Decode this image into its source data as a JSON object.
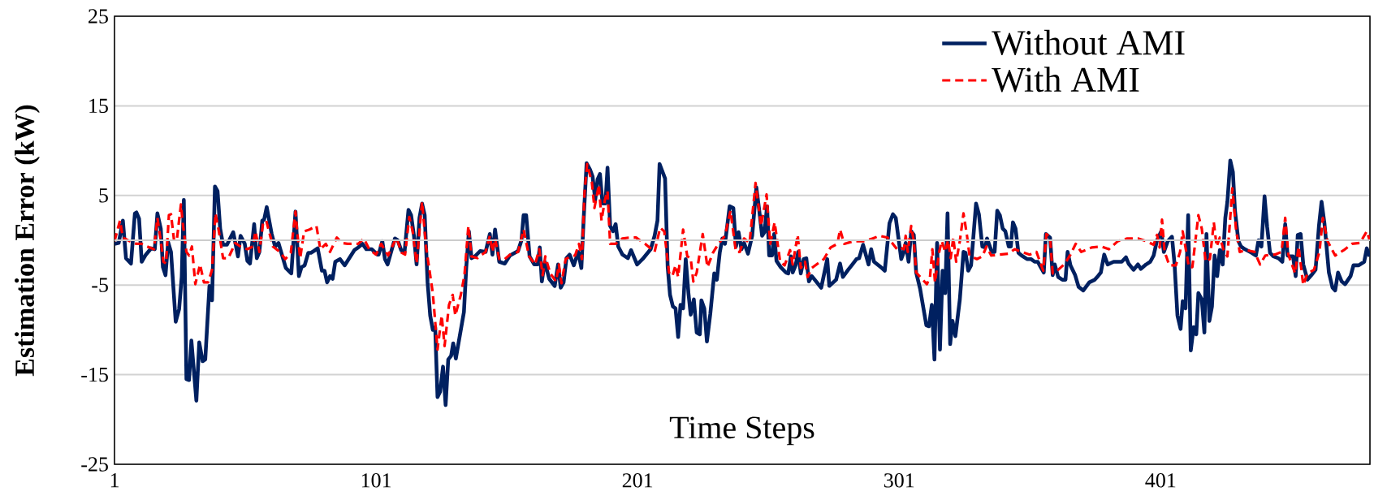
{
  "chart_data": {
    "type": "line",
    "xlabel": "Time Steps",
    "ylabel": "Estimation Error (kW)",
    "xlim": [
      1,
      481
    ],
    "xticks": [
      1,
      101,
      201,
      301,
      401
    ],
    "ylim": [
      -25,
      25
    ],
    "yticks": [
      25,
      15,
      5,
      -5,
      -15,
      -25
    ],
    "grid": "y",
    "legend": "top right",
    "marker": "none",
    "series": [
      {
        "name": "Without AMI",
        "color": "#002060",
        "line_style": "solid",
        "x": [
          1,
          2.6,
          4.2,
          5.4,
          7.3,
          8.8,
          9.4,
          10.4,
          11.4,
          13,
          15,
          16.4,
          17.4,
          18.7,
          19.5,
          20.5,
          21.5,
          22.6,
          24.4,
          25.7,
          26.7,
          27.5,
          28.5,
          29.5,
          30.4,
          32.3,
          33.4,
          34.7,
          35.7,
          37.3,
          38.3,
          39.4,
          40.4,
          41.4,
          42.5,
          44,
          46.4,
          48.2,
          49.2,
          50.8,
          51.8,
          52.8,
          54.4,
          55.4,
          56.4,
          57.5,
          58.2,
          59.2,
          61.1,
          62.4,
          63.7,
          66.5,
          68.6,
          70.2,
          71.5,
          72.5,
          73.7,
          75.1,
          76.1,
          77.2,
          78.7,
          80.3,
          81.3,
          82.3,
          83.4,
          84.4,
          85.4,
          87.2,
          89,
          92.7,
          94.2,
          95.8,
          97.3,
          99.4,
          101.5,
          102,
          103.4,
          104.4,
          105.4,
          108.2,
          109.3,
          110.6,
          111.9,
          113.4,
          114.4,
          115.5,
          116.5,
          117.6,
          118.6,
          119.6,
          120.7,
          121.7,
          122.7,
          123.6,
          124.5,
          125.5,
          126.6,
          127.6,
          128.6,
          129.7,
          130.5,
          131.5,
          134.6,
          135.5,
          136.5,
          137.5,
          138.8,
          140.8,
          142.9,
          144.5,
          145.5,
          146.5,
          148.1,
          150.2,
          152.2,
          155.3,
          156.6,
          157.4,
          158.4,
          159.7,
          161.5,
          162.8,
          163.6,
          164.4,
          165.5,
          167.2,
          169.3,
          170.6,
          171.6,
          172.7,
          173.8,
          175,
          176.6,
          178.3,
          179.5,
          180.4,
          181.5,
          182.8,
          183.8,
          184.8,
          185.7,
          186.6,
          187.6,
          188.7,
          189.5,
          190.5,
          191.6,
          192.6,
          193.6,
          195.2,
          197.3,
          198.5,
          199.8,
          200.8,
          202.9,
          206,
          207.5,
          208.6,
          209.4,
          211.5,
          212.5,
          213.4,
          214.5,
          215.5,
          216.5,
          217.4,
          218.4,
          219.4,
          220.5,
          221.3,
          222.5,
          223.6,
          224.8,
          225.4,
          226.5,
          227.5,
          228.8,
          230.3,
          231.3,
          232.4,
          233.4,
          234.4,
          236.2,
          237.6,
          238.6,
          239.6,
          240.7,
          241.7,
          243.2,
          244.8,
          246.4,
          247.4,
          248.6,
          249.5,
          250.5,
          251.3,
          252.4,
          253.2,
          254.1,
          255.7,
          257.7,
          258.6,
          259.6,
          260.3,
          261.4,
          262.4,
          263.4,
          264.5,
          265.5,
          266.5,
          267.6,
          271.2,
          273.5,
          274.3,
          276.9,
          278.4,
          279.5,
          281.5,
          283.1,
          284.7,
          285.7,
          287.2,
          289.3,
          290.3,
          291.4,
          294,
          295.5,
          297.3,
          298.6,
          299.7,
          301.8,
          302.8,
          303.5,
          304.6,
          305.6,
          306.6,
          307.5,
          309,
          311.4,
          312.4,
          313.5,
          314.5,
          315.5,
          316.6,
          317.6,
          318.6,
          319.5,
          320.5,
          321.4,
          322.5,
          324.2,
          325.6,
          326.4,
          327.4,
          328.5,
          330.4,
          331.5,
          332.8,
          333.9,
          334.6,
          336.4,
          337.5,
          338.5,
          339.5,
          340.6,
          341.6,
          342.9,
          343.7,
          344.5,
          345.5,
          346.6,
          347.8,
          349.9,
          351.4,
          352.8,
          354,
          355.1,
          356.3,
          357.1,
          358.7,
          359.7,
          360.5,
          361.8,
          363.4,
          364.6,
          365.4,
          366.5,
          368.3,
          369.6,
          371.4,
          373.7,
          375.8,
          377,
          378.1,
          379.4,
          380.7,
          383,
          386.1,
          387.7,
          388.7,
          390.6,
          392.3,
          393.4,
          395.4,
          397,
          398.3,
          399.6,
          401.2,
          402.2,
          403.7,
          405.3,
          406.3,
          407.4,
          408.6,
          409.4,
          410.5,
          411.5,
          412.5,
          413.6,
          414.6,
          415.4,
          416.7,
          417.7,
          418.5,
          419.6,
          420.6,
          421.6,
          422.6,
          423.6,
          424.7,
          425.7,
          426.5,
          427.6,
          428.6,
          429.4,
          430.7,
          431.7,
          433.2,
          435.8,
          437.4,
          438.4,
          439.5,
          440.7,
          441.7,
          442.8,
          444.1,
          446,
          447.5,
          448.6,
          449.5,
          450.5,
          451.6,
          452.6,
          453.4,
          454.5,
          455.5,
          457.1,
          458.6,
          460.2,
          461.5,
          462.5,
          463.6,
          465.3,
          466.7,
          467.7,
          468.8,
          470.2,
          471.5,
          473.6,
          474.7,
          476.7,
          478.8,
          479.8,
          480.9
        ],
        "values": [
          -0.4,
          -0.3,
          2.2,
          -2,
          -2.6,
          3,
          3.1,
          2.4,
          -2.4,
          -1.6,
          -0.9,
          -1,
          3,
          1.3,
          -3,
          -3.9,
          -0.2,
          -1.3,
          -9.1,
          -7.7,
          -4.1,
          4.5,
          -15.5,
          -15.6,
          -11.2,
          -17.9,
          -11.4,
          -13.5,
          -13.3,
          -5.1,
          -6.7,
          6,
          5.5,
          1.3,
          -0.5,
          -0.5,
          0.9,
          -1.8,
          0.5,
          -0.4,
          -2.3,
          -2.6,
          1.8,
          -2,
          -1.3,
          2.2,
          2.3,
          3.7,
          0.7,
          -0.7,
          -0.3,
          -3.1,
          -3.7,
          3.2,
          -4,
          -3,
          -2.8,
          -1.4,
          -1.4,
          -1.2,
          -0.9,
          -3.4,
          -3.4,
          -4.7,
          -4,
          -4.3,
          -2.4,
          -2.1,
          -2.8,
          -1.1,
          -0.8,
          -0.4,
          -1,
          -1,
          -1.6,
          -1.6,
          -0.1,
          -2.1,
          -2.7,
          0.2,
          0,
          -1.1,
          -1.3,
          3.4,
          2.8,
          0.5,
          -2.7,
          2.5,
          4.1,
          2.8,
          -4.7,
          -8.4,
          -10,
          -9.7,
          -17.5,
          -16.9,
          -14.1,
          -18.4,
          -13.3,
          -12.9,
          -11.5,
          -13.2,
          -8,
          -3,
          1,
          -2,
          -1.8,
          -1.2,
          -1.3,
          0.7,
          -1.6,
          1.2,
          -2.4,
          -2.6,
          -1.7,
          -1.2,
          0,
          2.8,
          2.8,
          -1.8,
          -2.7,
          -2.7,
          -0.8,
          -4.6,
          -2.4,
          -4.3,
          -5.1,
          -2.7,
          -5.3,
          -4.7,
          -2,
          -1.6,
          -2.8,
          -1.3,
          -3.1,
          2.5,
          8.6,
          7.9,
          7.1,
          4.5,
          6.8,
          7.4,
          4.1,
          4.1,
          8.1,
          1.6,
          1,
          1.8,
          -0.7,
          -1.6,
          -2,
          -1.1,
          -2,
          -2.7,
          -2.1,
          -1,
          0.5,
          2.2,
          8.5,
          6.9,
          -3,
          -6.1,
          -7.4,
          -7.6,
          -10.8,
          -7.2,
          -7.6,
          -2.1,
          -6.1,
          -8.3,
          -6.6,
          -10.3,
          -10.5,
          -6.7,
          -7.6,
          -11.3,
          -8.2,
          -3.7,
          -4.4,
          -1.4,
          0.2,
          -0.4,
          3.8,
          3.6,
          -0.7,
          0.9,
          -1,
          -0.3,
          -1.5,
          0.5,
          5.9,
          3.6,
          0.5,
          0.9,
          3.8,
          -1.7,
          -1.7,
          0.7,
          -2.3,
          -3,
          -3.6,
          -3.7,
          -1.8,
          -3.6,
          -2.8,
          -1.3,
          -3.7,
          -2.1,
          -2,
          -4.6,
          -4,
          -5.3,
          -2.1,
          -5.1,
          -4.4,
          -2.6,
          -4.1,
          -3.3,
          -2.7,
          -2.1,
          -2,
          -0.5,
          -2.7,
          -1,
          -2.4,
          -3,
          -3.4,
          1.9,
          2.9,
          2.5,
          -2.1,
          -1.3,
          -0.3,
          -2.4,
          1,
          0.6,
          -3.6,
          -5.4,
          -9.5,
          -9.6,
          -7.2,
          -13.3,
          -0.3,
          -12.2,
          -3.4,
          -5.9,
          3,
          -11.6,
          -9,
          -10.7,
          -6.6,
          -1.3,
          -1.4,
          -3.4,
          -2.8,
          4.1,
          2.9,
          -0.7,
          -0.8,
          0.2,
          -1.3,
          -1.3,
          3.3,
          2.8,
          1.3,
          1,
          -0.7,
          -0.7,
          2,
          1.3,
          -1.4,
          -1.7,
          -2.1,
          -2.1,
          -2.4,
          -2.4,
          -3,
          -3.6,
          0.7,
          0.3,
          -3.9,
          -2.7,
          -4.1,
          -4.4,
          -4.4,
          -1.3,
          -2.8,
          -3.9,
          -5.2,
          -5.6,
          -4.7,
          -4.4,
          -4,
          -3.6,
          -1.6,
          -2.7,
          -2.4,
          -2.4,
          -1.9,
          -2.6,
          -3.3,
          -2.7,
          -3.2,
          -2.7,
          -2.4,
          -1.7,
          0,
          1,
          -1.3,
          -0.1,
          0.4,
          -2.7,
          -8.4,
          -9.9,
          -6.8,
          -7.6,
          2.8,
          -12.3,
          -9.7,
          -10.5,
          -5.9,
          -6.6,
          -10.3,
          0.7,
          -9,
          -7.4,
          -1.7,
          -4,
          -1.1,
          -2.7,
          2.5,
          4.3,
          8.9,
          7.6,
          3.3,
          -0.1,
          -0.7,
          -1,
          -1.4,
          -1.7,
          0,
          -0.7,
          4.9,
          1.5,
          -1.4,
          -1.8,
          -2,
          -2.4,
          1.8,
          -1.7,
          -1.8,
          -1.8,
          -4,
          0.6,
          0.7,
          -2.7,
          -4.4,
          -3.9,
          -3.3,
          1.6,
          4.3,
          1.9,
          -3.6,
          -5.3,
          -5.6,
          -3.6,
          -4.6,
          -4.9,
          -4,
          -2.8,
          -2.8,
          -2.4,
          -0.9,
          -1.8
        ]
      },
      {
        "name": "With AMI",
        "color": "#ff0000",
        "line_style": "dashed",
        "x": [
          1,
          3.1,
          4.2,
          6.8,
          9.4,
          11.4,
          13.5,
          16.1,
          17.4,
          18.7,
          19.7,
          20.7,
          21.8,
          22.6,
          23.8,
          24.9,
          26.4,
          27.1,
          28.5,
          29.5,
          30.6,
          31.9,
          33.7,
          35.2,
          36.8,
          38.3,
          39.6,
          40.9,
          42.5,
          44.5,
          46.1,
          47.1,
          49.2,
          51.8,
          53.9,
          54.9,
          56.4,
          57.8,
          59,
          61.6,
          64.2,
          66.3,
          68.4,
          70.2,
          71,
          72,
          73.5,
          75.6,
          78.2,
          79.7,
          81.8,
          83.4,
          86,
          88,
          90.1,
          94.2,
          96.3,
          98.4,
          101,
          103,
          105.6,
          108.8,
          110.8,
          112.1,
          113.7,
          115,
          116.5,
          118.6,
          120.1,
          122.7,
          124.5,
          126.1,
          127.2,
          128.9,
          130.3,
          131.3,
          133.4,
          134.8,
          136.3,
          137.5,
          139.8,
          142.9,
          144.5,
          145.5,
          146.5,
          148.1,
          150.2,
          152.2,
          155.3,
          157.4,
          159.5,
          161.8,
          163.4,
          164.7,
          165.7,
          167.6,
          169.8,
          170.9,
          171.9,
          173.5,
          175.5,
          177.1,
          178.6,
          179.7,
          180.7,
          181.7,
          183.5,
          184.5,
          186.2,
          187.2,
          188.5,
          189.5,
          190.5,
          192.6,
          195.2,
          197.8,
          200.4,
          203.9,
          207.5,
          209.6,
          211.2,
          213,
          214.3,
          215.5,
          216.5,
          218.4,
          220,
          221.3,
          222.3,
          223.6,
          225.9,
          227.7,
          229.8,
          231.9,
          234.4,
          236.5,
          238.6,
          240.1,
          241.7,
          243.8,
          246.1,
          248.2,
          250.3,
          251.7,
          253.4,
          255.5,
          257.2,
          259.3,
          260.3,
          262.2,
          263.4,
          265,
          266,
          267.6,
          272.2,
          274.8,
          277.4,
          278.4,
          280,
          283.6,
          287.8,
          290.9,
          293.5,
          296.6,
          298.6,
          300.2,
          301.2,
          302.8,
          303.5,
          304.3,
          305.6,
          306.6,
          307.5,
          311.6,
          312.8,
          313.7,
          314.7,
          316.3,
          317.3,
          318.6,
          319.7,
          320.7,
          321.7,
          322.8,
          324.2,
          325.6,
          326.9,
          327.9,
          330.7,
          332.8,
          334.4,
          336.2,
          339.5,
          342.6,
          345.2,
          347.8,
          350.9,
          353.5,
          356.1,
          357.3,
          358.7,
          359.7,
          361.8,
          364.4,
          366.5,
          368.5,
          370.6,
          374.7,
          378.4,
          381.2,
          384.6,
          388.2,
          392.3,
          395.4,
          398.3,
          399.6,
          400.6,
          401.5,
          402.5,
          404.3,
          406.8,
          408.4,
          409.4,
          411.8,
          413.1,
          415.4,
          416.7,
          418.2,
          419.8,
          421.3,
          422.4,
          423.6,
          425,
          426.5,
          428.4,
          429.8,
          431.2,
          433.8,
          436.9,
          439,
          441,
          444.6,
          447.2,
          448.6,
          449.8,
          452.4,
          453.7,
          455.5,
          457.1,
          459.6,
          461.7,
          463,
          464.8,
          467.7,
          471,
          474.1,
          477.2,
          479.8,
          480.9
        ],
        "values": [
          -0.1,
          2.2,
          0.3,
          -0.1,
          -0.4,
          -0.4,
          -0.7,
          -1,
          2.5,
          -0.1,
          -2.4,
          -2.6,
          2.8,
          2.9,
          -0.1,
          0.2,
          4,
          1.9,
          -1.3,
          -1.7,
          -0.7,
          -4.9,
          -2.7,
          -4.7,
          -4.7,
          -3.3,
          3,
          1,
          -2,
          -2,
          -1,
          -0.3,
          -0.7,
          -1,
          -0.7,
          1,
          -1.3,
          1.9,
          2.2,
          -0.7,
          -1.3,
          -2.1,
          -1.4,
          3.2,
          0.5,
          -2,
          1,
          1.2,
          1.6,
          -1,
          -0.4,
          -1.3,
          0.3,
          -0.3,
          -0.4,
          -0.4,
          0.2,
          -1,
          -1.6,
          -0.4,
          -1.7,
          0.3,
          -1.4,
          -1.6,
          2.6,
          1,
          -2.6,
          4.3,
          -0.7,
          -5.9,
          -12.2,
          -8.4,
          -11.8,
          -7.2,
          -6.1,
          -8.4,
          -6.1,
          -3.9,
          1.6,
          -1.8,
          -2,
          -1.3,
          0.5,
          -1.3,
          0.2,
          -2.1,
          -2.1,
          -1.6,
          -1.3,
          1.2,
          -1.8,
          -2.7,
          -1,
          -3.9,
          -1.8,
          -3.7,
          -4.6,
          -2.7,
          -4.8,
          -2.1,
          -1.8,
          -1.7,
          -0.4,
          -2.1,
          5.3,
          8.5,
          6.5,
          3.6,
          6.2,
          2.2,
          4.5,
          5.5,
          -0.4,
          -0.4,
          0.2,
          0.3,
          0.3,
          -0.4,
          -1.3,
          1.4,
          1,
          -3.6,
          -4,
          -2.8,
          -4.1,
          1.2,
          -1.8,
          -2,
          -4.6,
          -3.6,
          0.7,
          -3,
          -1.4,
          -0.4,
          0.5,
          3.3,
          -1.3,
          -1.3,
          0.2,
          -0.3,
          6.4,
          1.6,
          5.1,
          -0.4,
          2,
          -2.4,
          -2.8,
          -1.1,
          -2.7,
          0.6,
          -3.1,
          -2.4,
          -4.1,
          -3.1,
          -2.1,
          -0.8,
          -0.4,
          1.2,
          -0.4,
          -0.1,
          -0.1,
          0.2,
          0.5,
          0.3,
          -0.4,
          -1,
          -0.8,
          -1,
          0.5,
          -1.3,
          1.6,
          -0.1,
          -3.6,
          -4.9,
          -4.1,
          -1,
          -4.7,
          -1.3,
          -0.1,
          -1.3,
          0,
          -2,
          0.3,
          -2.4,
          -0.1,
          3,
          0.6,
          -1.7,
          -2.1,
          -1.8,
          -0.7,
          -1.7,
          -1.6,
          -1.5,
          -1,
          -1.3,
          -1.6,
          -1.3,
          -3.4,
          0.7,
          0.3,
          -3.7,
          -3.3,
          -2.6,
          -1.6,
          -0.4,
          -1.3,
          -0.8,
          -0.7,
          -1,
          -0.1,
          0.2,
          0.2,
          -0.1,
          -0.5,
          0.6,
          -0.8,
          2.3,
          -1.3,
          -2.8,
          -2.8,
          -1.3,
          1,
          -3,
          -3,
          2.8,
          1.3,
          -2.4,
          -2.1,
          2,
          -0.7,
          0.3,
          -1,
          -1.8,
          5.8,
          1.2,
          -1.3,
          -1.1,
          -1.3,
          -2.7,
          -1.7,
          -1.6,
          -1.3,
          2.5,
          -1.6,
          -3.7,
          -0.7,
          -5,
          -3.7,
          -3.3,
          -1.3,
          2.5,
          -0.1,
          -1.7,
          -1.1,
          -0.4,
          -0.3,
          1,
          0
        ]
      }
    ]
  }
}
